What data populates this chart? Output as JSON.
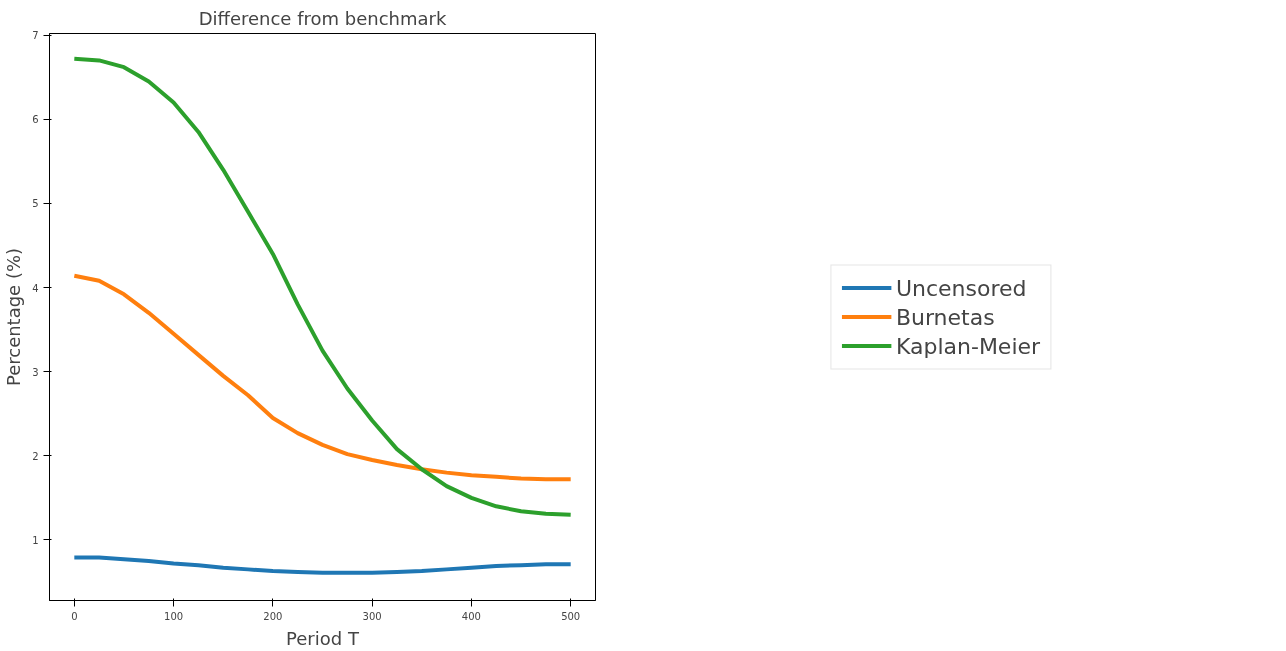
{
  "chart_data": {
    "type": "line",
    "title": "Difference from benchmark",
    "xlabel": "Period T",
    "ylabel": "Percentage (%)",
    "x": [
      0,
      25,
      50,
      75,
      100,
      125,
      150,
      175,
      200,
      225,
      250,
      275,
      300,
      325,
      350,
      375,
      400,
      425,
      450,
      475,
      500
    ],
    "series": [
      {
        "name": "Uncensored",
        "color": "#1f77b4",
        "values": [
          0.79,
          0.79,
          0.77,
          0.75,
          0.72,
          0.7,
          0.67,
          0.65,
          0.63,
          0.62,
          0.61,
          0.61,
          0.61,
          0.62,
          0.63,
          0.65,
          0.67,
          0.69,
          0.7,
          0.71,
          0.71
        ]
      },
      {
        "name": "Burnetas",
        "color": "#ff7f0e",
        "values": [
          4.14,
          4.08,
          3.92,
          3.7,
          3.45,
          3.2,
          2.95,
          2.72,
          2.45,
          2.27,
          2.13,
          2.02,
          1.95,
          1.89,
          1.84,
          1.8,
          1.77,
          1.75,
          1.73,
          1.72,
          1.72
        ]
      },
      {
        "name": "Kaplan-Meier",
        "color": "#2ca02c",
        "values": [
          6.72,
          6.7,
          6.62,
          6.45,
          6.2,
          5.85,
          5.4,
          4.9,
          4.4,
          3.8,
          3.25,
          2.8,
          2.42,
          2.08,
          1.84,
          1.64,
          1.5,
          1.4,
          1.34,
          1.31,
          1.3
        ]
      }
    ],
    "xlim": [
      -25,
      525
    ],
    "ylim": [
      0.28,
      7.02
    ],
    "xticks": [
      0,
      100,
      200,
      300,
      400,
      500
    ],
    "yticks": [
      1,
      2,
      3,
      4,
      5,
      6,
      7
    ],
    "grid": false,
    "legend": "right",
    "marker": "none",
    "line_style": "solid"
  }
}
